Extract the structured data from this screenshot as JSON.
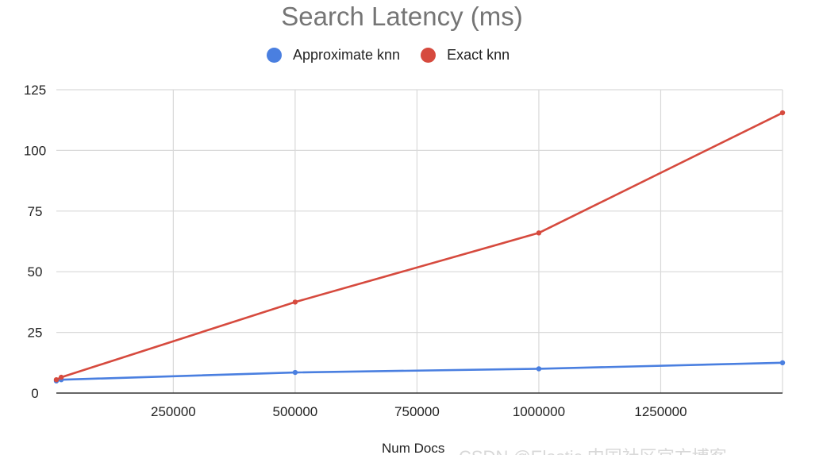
{
  "watermark": "CSDN @Elastic 中国社区官方博客",
  "colors": {
    "approx": "#4a7fe0",
    "exact": "#d64a3e",
    "grid": "#d9d9d9",
    "axis": "#333333"
  },
  "chart_data": {
    "type": "line",
    "title": "Search Latency (ms)",
    "xlabel": "Num Docs",
    "ylabel": "",
    "legend_position": "top",
    "grid": true,
    "xlim": [
      10000,
      1500000
    ],
    "ylim": [
      0,
      125
    ],
    "x_ticks": [
      250000,
      500000,
      750000,
      1000000,
      1250000
    ],
    "y_ticks": [
      0,
      25,
      50,
      75,
      100,
      125
    ],
    "x_tick_labels": [
      "250000",
      "500000",
      "750000",
      "1000000",
      "1250000"
    ],
    "y_tick_labels": [
      "0",
      "25",
      "50",
      "75",
      "100",
      "125"
    ],
    "series": [
      {
        "name": "Approximate knn",
        "x": [
          10000,
          20000,
          500000,
          1000000,
          1500000
        ],
        "values": [
          5,
          5.5,
          8.5,
          10,
          12.5
        ]
      },
      {
        "name": "Exact knn",
        "x": [
          10000,
          20000,
          500000,
          1000000,
          1500000
        ],
        "values": [
          5.5,
          6.5,
          37.5,
          66,
          115.5
        ]
      }
    ]
  }
}
